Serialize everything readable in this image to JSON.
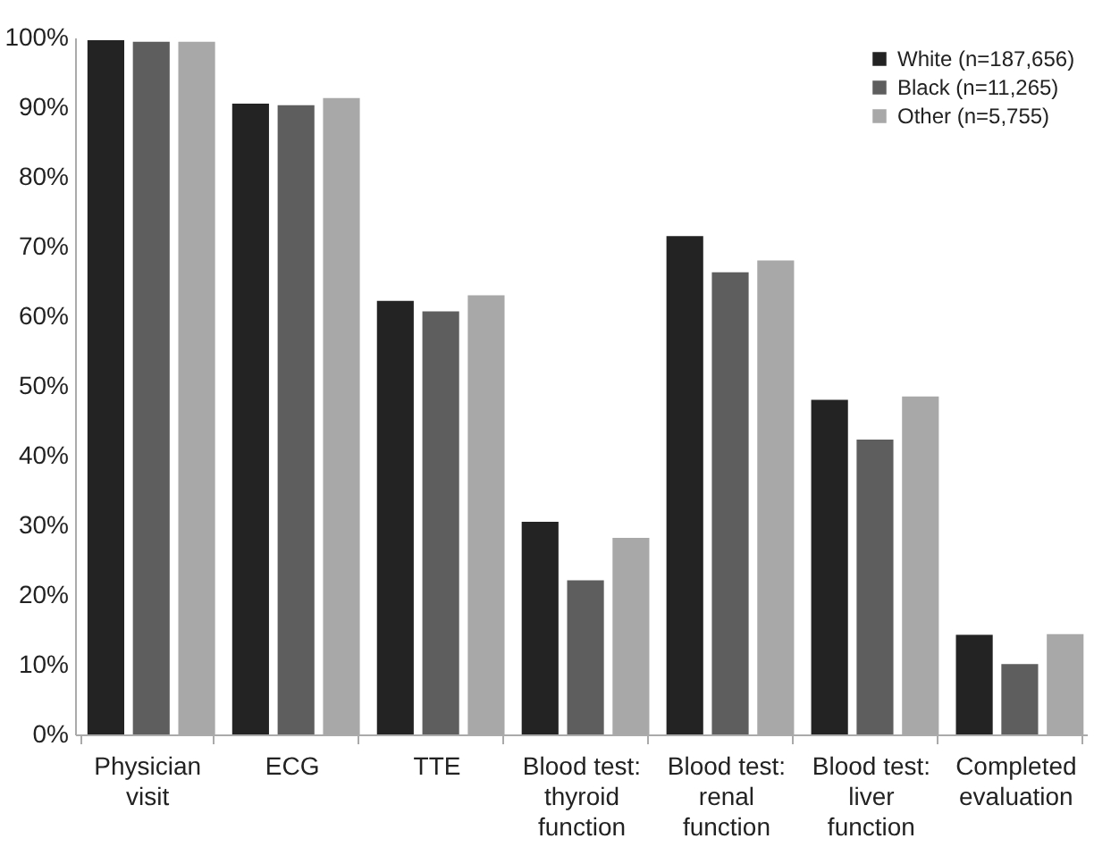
{
  "chart_data": {
    "type": "bar",
    "categories": [
      "Physician visit",
      "ECG",
      "TTE",
      "Blood test: thyroid function",
      "Blood test: renal function",
      "Blood test: liver function",
      "Completed evaluation"
    ],
    "series": [
      {
        "name": "White (n=187,656)",
        "color": "#232323",
        "values": [
          99.6,
          90.5,
          62.2,
          30.5,
          71.5,
          48.0,
          14.3
        ]
      },
      {
        "name": "Black (n=11,265)",
        "color": "#5e5e5e",
        "values": [
          99.4,
          90.3,
          60.7,
          22.1,
          66.3,
          42.3,
          10.1
        ]
      },
      {
        "name": "Other (n=5,755)",
        "color": "#a8a8a8",
        "values": [
          99.4,
          91.3,
          63.0,
          28.2,
          68.0,
          48.5,
          14.4
        ]
      }
    ],
    "ylim": [
      0,
      100
    ],
    "yticks": [
      {
        "value": 0,
        "label": "0%"
      },
      {
        "value": 10,
        "label": "10%"
      },
      {
        "value": 20,
        "label": "20%"
      },
      {
        "value": 30,
        "label": "30%"
      },
      {
        "value": 40,
        "label": "40%"
      },
      {
        "value": 50,
        "label": "50%"
      },
      {
        "value": 60,
        "label": "60%"
      },
      {
        "value": 70,
        "label": "70%"
      },
      {
        "value": 80,
        "label": "80%"
      },
      {
        "value": 90,
        "label": "90%"
      },
      {
        "value": 100,
        "label": "100%"
      }
    ],
    "grid": false,
    "legend": "top right"
  }
}
